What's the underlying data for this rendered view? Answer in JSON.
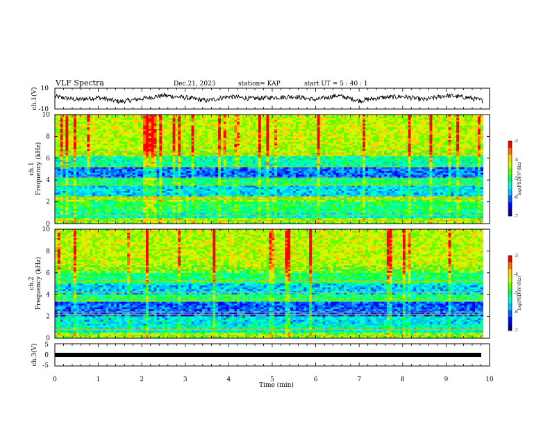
{
  "header": {
    "title": "VLF Spectra",
    "date": "Dec.21, 2023",
    "station": "station= KAP",
    "start": "start UT =  5 : 40 : 1"
  },
  "colors": {
    "colormap": [
      "#000080",
      "#0000ff",
      "#0080ff",
      "#00ffff",
      "#00ff80",
      "#00ff00",
      "#80ff00",
      "#ffff00",
      "#ff8000",
      "#ff0000",
      "#ffffff"
    ],
    "trace": "#000000",
    "axis": "#000000"
  },
  "chart_data": [
    {
      "type": "line",
      "name": "ch1-waveform",
      "ylabel": "ch.1(V)",
      "ylim": [
        -10,
        10
      ],
      "ytick_labels": [
        "10",
        "-10"
      ],
      "xlim": [
        0,
        10
      ],
      "x": [
        0,
        0.5,
        1,
        1.5,
        2,
        2.5,
        3,
        3.5,
        4,
        4.5,
        5,
        5.5,
        6,
        6.5,
        7,
        7.5,
        8,
        8.5,
        9,
        9.5,
        9.85
      ],
      "values": [
        2,
        -1,
        1,
        -3,
        0,
        3,
        1,
        -2,
        2,
        0,
        1,
        2,
        -1,
        3,
        -2,
        1,
        2,
        -1,
        3,
        1,
        -2
      ]
    },
    {
      "type": "heatmap",
      "name": "ch1-spectrogram",
      "ylabel": "ch.1\nFrequency (kHz)",
      "ylim": [
        0,
        10
      ],
      "ytick_labels": [
        "0",
        "2",
        "4",
        "6",
        "8",
        "10"
      ],
      "xlim": [
        0,
        9.85
      ],
      "color_scale": {
        "label": "log(PSD)(V²/Hz)",
        "min": -7,
        "max": -3,
        "tick_labels": [
          "-3",
          "-4",
          "-5",
          "-6",
          "-7"
        ]
      },
      "band_levels_by_freq_khz": [
        {
          "f": [
            0,
            0.5
          ],
          "level": -4.5
        },
        {
          "f": [
            0.5,
            1.0
          ],
          "level": -5.3
        },
        {
          "f": [
            1.0,
            2.0
          ],
          "level": -5.0
        },
        {
          "f": [
            2.0,
            2.5
          ],
          "level": -4.6
        },
        {
          "f": [
            2.5,
            3.5
          ],
          "level": -5.6
        },
        {
          "f": [
            3.5,
            4.2
          ],
          "level": -5.0
        },
        {
          "f": [
            4.2,
            5.2
          ],
          "level": -6.0
        },
        {
          "f": [
            5.2,
            6.2
          ],
          "level": -5.2
        },
        {
          "f": [
            6.2,
            6.6
          ],
          "level": -4.5
        },
        {
          "f": [
            6.6,
            10.0
          ],
          "level": -4.3
        }
      ]
    },
    {
      "type": "heatmap",
      "name": "ch2-spectrogram",
      "ylabel": "ch.2\nFrequency (kHz)",
      "ylim": [
        0,
        10
      ],
      "ytick_labels": [
        "0",
        "2",
        "4",
        "6",
        "8",
        "10"
      ],
      "xlim": [
        0,
        9.85
      ],
      "color_scale": {
        "label": "log(PSD)(V²/Hz)",
        "min": -7,
        "max": -3,
        "tick_labels": [
          "-3",
          "-4",
          "-5",
          "-6",
          "-7"
        ]
      },
      "band_levels_by_freq_khz": [
        {
          "f": [
            0,
            0.5
          ],
          "level": -4.5
        },
        {
          "f": [
            0.5,
            1.2
          ],
          "level": -5.3
        },
        {
          "f": [
            1.2,
            2.0
          ],
          "level": -5.5
        },
        {
          "f": [
            2.0,
            3.3
          ],
          "level": -6.1
        },
        {
          "f": [
            3.3,
            4.0
          ],
          "level": -5.0
        },
        {
          "f": [
            4.0,
            5.0
          ],
          "level": -5.6
        },
        {
          "f": [
            5.0,
            6.0
          ],
          "level": -5.0
        },
        {
          "f": [
            6.0,
            6.6
          ],
          "level": -4.6
        },
        {
          "f": [
            6.6,
            10.0
          ],
          "level": -4.3
        }
      ]
    },
    {
      "type": "line",
      "name": "ch3-waveform",
      "ylabel": "ch.3(V)",
      "ylim": [
        -5,
        5
      ],
      "ytick_labels": [
        "5",
        "0",
        "-5"
      ],
      "xlim": [
        0,
        10
      ],
      "x": [
        0,
        9.85
      ],
      "values": [
        0,
        0
      ]
    }
  ],
  "x_axis": {
    "label": "Time (min)",
    "tick_labels": [
      "0",
      "1",
      "2",
      "3",
      "4",
      "5",
      "6",
      "7",
      "8",
      "9",
      "10"
    ]
  }
}
